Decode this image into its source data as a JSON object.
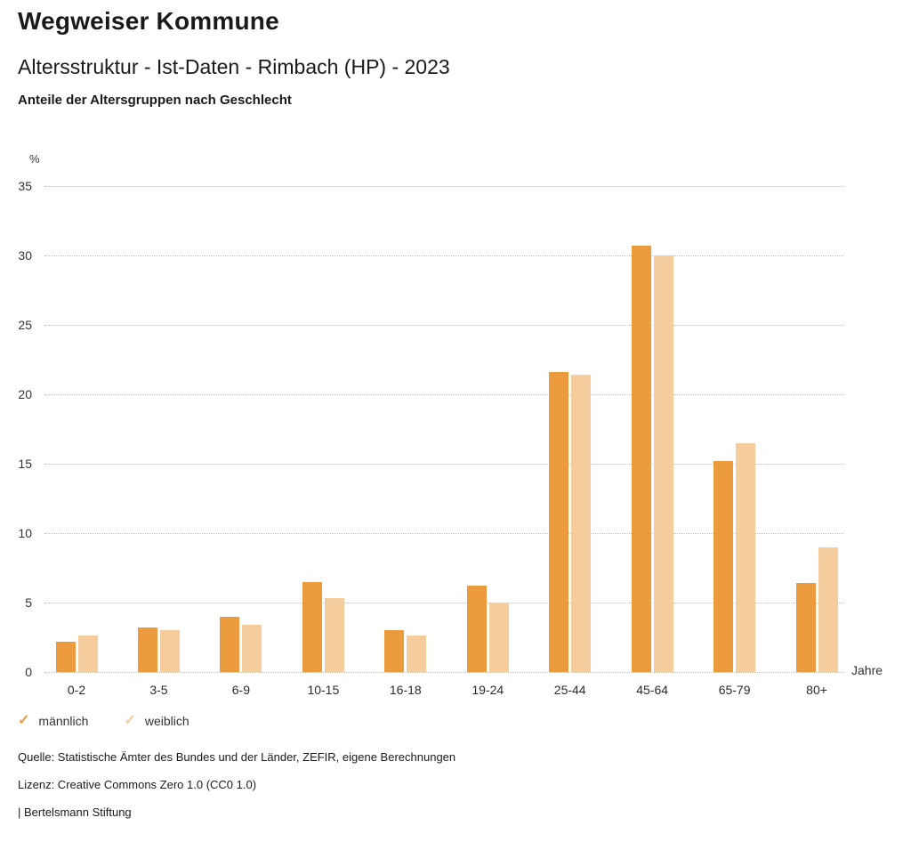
{
  "header": {
    "title": "Wegweiser Kommune",
    "subtitle": "Altersstruktur - Ist-Daten - Rimbach (HP) - 2023",
    "section_heading": "Anteile der Altersgruppen nach Geschlecht"
  },
  "chart_data": {
    "type": "bar",
    "title": "Anteile der Altersgruppen nach Geschlecht",
    "categories": [
      "0-2",
      "3-5",
      "6-9",
      "10-15",
      "16-18",
      "19-24",
      "25-44",
      "45-64",
      "65-79",
      "80+"
    ],
    "series": [
      {
        "name": "männlich",
        "color": "#EC9A3E",
        "values": [
          2.2,
          3.2,
          4.0,
          6.5,
          3.0,
          6.2,
          21.6,
          30.7,
          15.2,
          6.4
        ]
      },
      {
        "name": "weiblich",
        "color": "#F5CD9C",
        "values": [
          2.6,
          3.0,
          3.4,
          5.3,
          2.6,
          5.0,
          21.4,
          30.0,
          16.5,
          9.0
        ]
      }
    ],
    "xlabel": "Jahre",
    "ylabel": "%",
    "ylim": [
      0,
      35
    ],
    "yticks": [
      0,
      5,
      10,
      15,
      20,
      25,
      30,
      35
    ],
    "grid": "horizontal-dotted",
    "legend_position": "bottom-left"
  },
  "legend": {
    "items": [
      {
        "label": "männlich",
        "icon": "check-icon",
        "color": "#EC9A3E"
      },
      {
        "label": "weiblich",
        "icon": "check-icon",
        "color": "#F5CD9C"
      }
    ]
  },
  "footer": {
    "source": "Quelle: Statistische Ämter des Bundes und der Länder, ZEFIR, eigene Berechnungen",
    "license": "Lizenz: Creative Commons Zero 1.0 (CC0 1.0)",
    "attribution": "| Bertelsmann Stiftung"
  }
}
